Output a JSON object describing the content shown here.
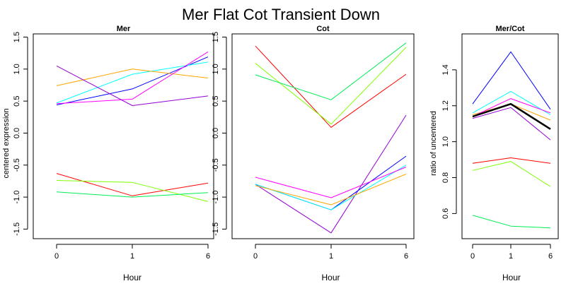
{
  "figure": {
    "title": "Mer Flat Cot Transient Down"
  },
  "chart_data": [
    {
      "type": "line",
      "title": "Mer",
      "xlabel": "Hour",
      "ylabel": "centered expression",
      "categories": [
        "0",
        "1",
        "6"
      ],
      "ylim": [
        -1.65,
        1.55
      ],
      "yticks": [
        "-1.5",
        "-1.0",
        "-0.5",
        "0.0",
        "0.5",
        "1.0",
        "1.5"
      ],
      "grid": false,
      "series": [
        {
          "color": "#0000ff",
          "values": [
            0.44,
            0.69,
            1.19
          ]
        },
        {
          "color": "#00ffff",
          "values": [
            0.47,
            0.92,
            1.11
          ]
        },
        {
          "color": "#ffa500",
          "values": [
            0.74,
            1.0,
            0.86
          ]
        },
        {
          "color": "#ff00ff",
          "values": [
            0.46,
            0.53,
            1.27
          ]
        },
        {
          "color": "#9400d3",
          "values": [
            1.05,
            0.43,
            0.58
          ]
        },
        {
          "color": "#ff0000",
          "values": [
            -0.63,
            -0.98,
            -0.78
          ]
        },
        {
          "color": "#7fff00",
          "values": [
            -0.74,
            -0.77,
            -1.07
          ]
        },
        {
          "color": "#00ee55",
          "values": [
            -0.92,
            -1.0,
            -0.93
          ]
        }
      ]
    },
    {
      "type": "line",
      "title": "Cot",
      "xlabel": "Hour",
      "ylabel": "",
      "categories": [
        "0",
        "1",
        "6"
      ],
      "ylim": [
        -1.65,
        1.55
      ],
      "yticks": [
        "-1.5",
        "-1.0",
        "-0.5",
        "0.0",
        "0.5",
        "1.0",
        "1.5"
      ],
      "grid": false,
      "series": [
        {
          "color": "#ff0000",
          "values": [
            1.36,
            0.09,
            0.92
          ]
        },
        {
          "color": "#7fff00",
          "values": [
            1.09,
            0.14,
            1.34
          ]
        },
        {
          "color": "#00ee55",
          "values": [
            0.91,
            0.52,
            1.41
          ]
        },
        {
          "color": "#9400d3",
          "values": [
            -0.8,
            -1.56,
            0.28
          ]
        },
        {
          "color": "#0000ff",
          "values": [
            -0.8,
            -1.2,
            -0.36
          ]
        },
        {
          "color": "#00ffff",
          "values": [
            -0.8,
            -1.2,
            -0.5
          ]
        },
        {
          "color": "#ffa500",
          "values": [
            -0.82,
            -1.12,
            -0.64
          ]
        },
        {
          "color": "#ff00ff",
          "values": [
            -0.69,
            -1.01,
            -0.53
          ]
        }
      ]
    },
    {
      "type": "line",
      "title": "Mer/Cot",
      "xlabel": "Hour",
      "ylabel": "ratio of uncentered",
      "categories": [
        "0",
        "1",
        "6"
      ],
      "ylim": [
        0.46,
        1.6
      ],
      "yticks": [
        "0.6",
        "0.8",
        "1.0",
        "1.2",
        "1.4"
      ],
      "grid": false,
      "series": [
        {
          "color": "#0000ff",
          "values": [
            1.21,
            1.5,
            1.18
          ]
        },
        {
          "color": "#00ffff",
          "values": [
            1.16,
            1.28,
            1.15
          ]
        },
        {
          "color": "#ffa500",
          "values": [
            1.15,
            1.21,
            1.12
          ]
        },
        {
          "color": "#ff00ff",
          "values": [
            1.14,
            1.24,
            1.16
          ]
        },
        {
          "color": "#9400d3",
          "values": [
            1.13,
            1.19,
            1.01
          ]
        },
        {
          "color": "#000000",
          "values": [
            1.14,
            1.21,
            1.07
          ],
          "bold": true
        },
        {
          "color": "#ff0000",
          "values": [
            0.88,
            0.91,
            0.88
          ]
        },
        {
          "color": "#7fff00",
          "values": [
            0.84,
            0.89,
            0.75
          ]
        },
        {
          "color": "#00ee55",
          "values": [
            0.59,
            0.53,
            0.52
          ]
        }
      ]
    }
  ]
}
